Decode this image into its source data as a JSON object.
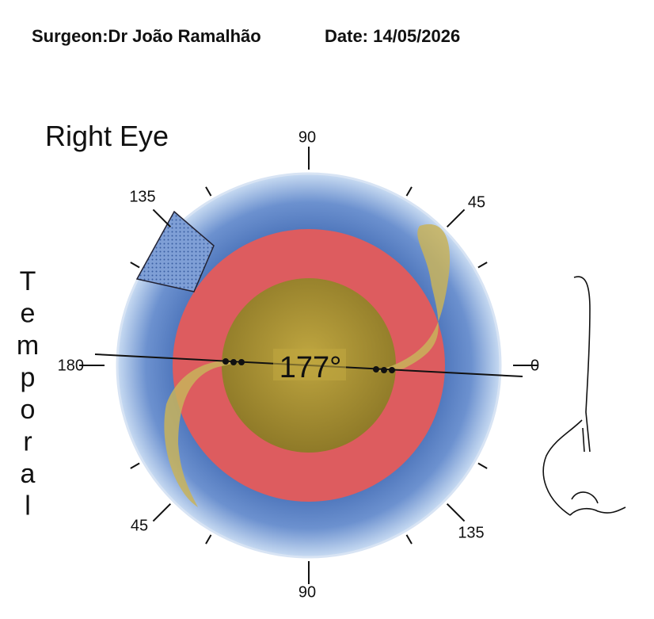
{
  "header": {
    "surgeon": "Surgeon:Dr João Ramalhão",
    "date": "Date: 14/05/2026"
  },
  "eye": "Right Eye",
  "side_letters": [
    "T",
    "e",
    "m",
    "p",
    "o",
    "r",
    "a",
    "l"
  ],
  "axis_value": "177°",
  "degree_labels": {
    "top": "90",
    "top_right": "45",
    "right": "0",
    "bottom_right": "135",
    "bottom": "90",
    "bottom_left": "45",
    "left": "180",
    "top_left": "135"
  }
}
